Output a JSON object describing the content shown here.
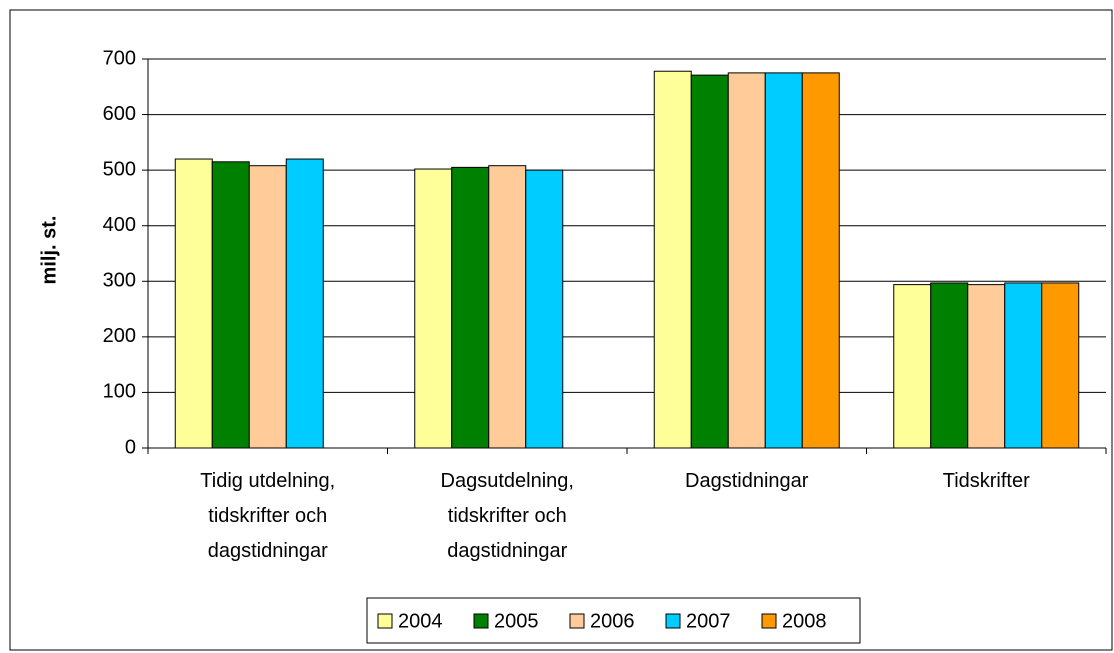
{
  "chart_data": {
    "type": "bar",
    "y_label": "milj. st.",
    "categories": [
      "Tidig utdelning, tidskrifter och dagstidningar",
      "Dagsutdelning, tidskrifter och dagstidningar",
      "Dagstidningar",
      "Tidskrifter"
    ],
    "series": [
      {
        "name": "2004",
        "color": "#ffff99",
        "values": [
          520,
          502,
          678,
          294
        ]
      },
      {
        "name": "2005",
        "color": "#008000",
        "values": [
          515,
          505,
          671,
          297
        ]
      },
      {
        "name": "2006",
        "color": "#ffcc99",
        "values": [
          508,
          508,
          675,
          294
        ]
      },
      {
        "name": "2007",
        "color": "#00ccff",
        "values": [
          520,
          500,
          675,
          297
        ]
      },
      {
        "name": "2008",
        "color": "#ff9900",
        "values": [
          null,
          null,
          675,
          297
        ]
      }
    ],
    "ylim": [
      0,
      700
    ],
    "yticks": [
      0,
      100,
      200,
      300,
      400,
      500,
      600,
      700
    ],
    "grid": true,
    "legend": "bottom"
  }
}
